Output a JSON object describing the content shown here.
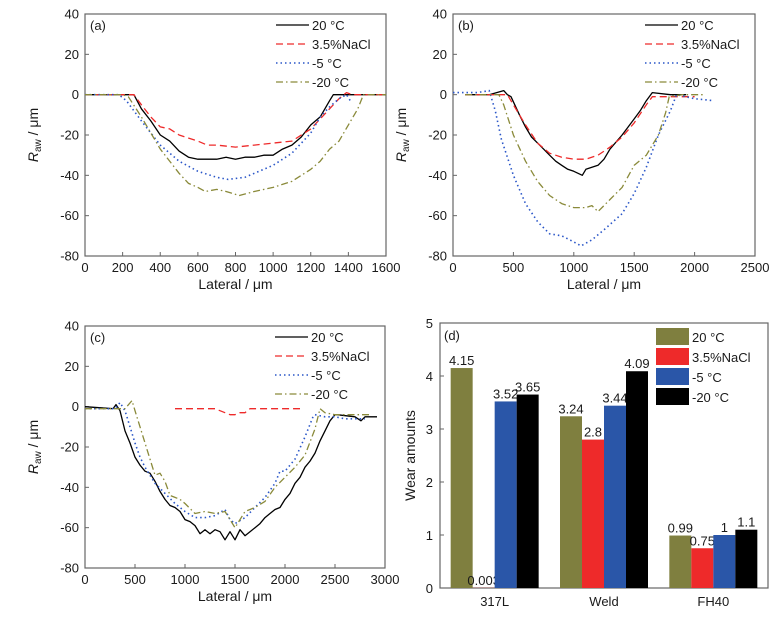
{
  "chart_data": [
    {
      "type": "line",
      "panel_label": "(a)",
      "xlabel": "Lateral / μm",
      "ylabel_main": "R",
      "ylabel_sub": "aw",
      "ylabel_unit": " / μm",
      "xlim": [
        0,
        1600
      ],
      "ylim": [
        -80,
        40
      ],
      "xticks": [
        0,
        200,
        400,
        600,
        800,
        1000,
        1200,
        1400,
        1600
      ],
      "yticks": [
        -80,
        -60,
        -40,
        -20,
        0,
        20,
        40
      ],
      "legend_position": "top-right",
      "series": [
        {
          "name": "20 °C",
          "color": "#000000",
          "style": "solid",
          "x": [
            0,
            200,
            260,
            300,
            350,
            400,
            450,
            500,
            550,
            600,
            650,
            700,
            750,
            800,
            850,
            900,
            950,
            1000,
            1050,
            1100,
            1150,
            1200,
            1250,
            1300,
            1320,
            1400,
            1600
          ],
          "y": [
            0,
            0,
            0,
            -7,
            -13,
            -20,
            -23,
            -28,
            -31,
            -32,
            -32,
            -32,
            -31,
            -32,
            -31,
            -31,
            -30,
            -30,
            -27,
            -25,
            -21,
            -15,
            -11,
            -3,
            0,
            0,
            0
          ]
        },
        {
          "name": "3.5%NaCl",
          "color": "#ee2a2a",
          "style": "dashed",
          "x": [
            0,
            200,
            260,
            300,
            350,
            400,
            450,
            500,
            600,
            650,
            700,
            800,
            900,
            1000,
            1100,
            1200,
            1250,
            1300,
            1350,
            1390,
            1420,
            1600
          ],
          "y": [
            0,
            0,
            0,
            -5,
            -11,
            -16,
            -17,
            -20,
            -23,
            -25,
            -25,
            -26,
            -25,
            -24,
            -23,
            -17,
            -12,
            -7,
            -2,
            1,
            0,
            0
          ]
        },
        {
          "name": "-5 °C",
          "color": "#2a56c8",
          "style": "dotted",
          "x": [
            0,
            180,
            220,
            300,
            400,
            500,
            600,
            700,
            760,
            850,
            900,
            1000,
            1100,
            1200,
            1250,
            1300,
            1350,
            1390,
            1410
          ],
          "y": [
            0,
            0,
            -3,
            -13,
            -25,
            -33,
            -38,
            -41,
            -42,
            -41,
            -39,
            -35,
            -29,
            -19,
            -11,
            -6,
            -2,
            0,
            -3
          ]
        },
        {
          "name": "-20 °C",
          "color": "#8a8a3a",
          "style": "dashdot",
          "x": [
            0,
            200,
            230,
            300,
            400,
            500,
            550,
            600,
            640,
            700,
            750,
            820,
            900,
            1000,
            1100,
            1200,
            1250,
            1300,
            1350,
            1400,
            1450,
            1480,
            1600
          ],
          "y": [
            0,
            0,
            -1,
            -11,
            -27,
            -39,
            -44,
            -46,
            -48,
            -47,
            -48,
            -50,
            -48,
            -46,
            -43,
            -37,
            -33,
            -27,
            -23,
            -15,
            -7,
            0,
            0
          ]
        }
      ]
    },
    {
      "type": "line",
      "panel_label": "(b)",
      "xlabel": "Lateral / μm",
      "ylabel_main": "R",
      "ylabel_sub": "aw",
      "ylabel_unit": " / μm",
      "xlim": [
        0,
        2500
      ],
      "ylim": [
        -80,
        40
      ],
      "xticks": [
        0,
        500,
        1000,
        1500,
        2000,
        2500
      ],
      "yticks": [
        -80,
        -60,
        -40,
        -20,
        0,
        20,
        40
      ],
      "legend_position": "top-right",
      "series": [
        {
          "name": "20 °C",
          "color": "#000000",
          "style": "solid",
          "x": [
            100,
            300,
            420,
            450,
            480,
            550,
            600,
            650,
            700,
            750,
            800,
            850,
            900,
            950,
            1000,
            1070,
            1100,
            1150,
            1200,
            1250,
            1300,
            1400,
            1450,
            1500,
            1550,
            1600,
            1650,
            1800,
            1930
          ],
          "y": [
            0,
            0,
            2,
            0,
            -1,
            -10,
            -16,
            -21,
            -24,
            -27,
            -30,
            -33,
            -35,
            -37,
            -38,
            -40,
            -37,
            -36,
            -35,
            -32,
            -27,
            -20,
            -16,
            -12,
            -8,
            -3,
            1,
            0,
            0
          ]
        },
        {
          "name": "3.5%NaCl",
          "color": "#ee2a2a",
          "style": "dashed",
          "x": [
            100,
            400,
            450,
            500,
            600,
            700,
            800,
            900,
            1000,
            1100,
            1200,
            1300,
            1400,
            1500,
            1600,
            1650,
            1800,
            2000
          ],
          "y": [
            0,
            0,
            0,
            -5,
            -15,
            -24,
            -29,
            -31,
            -32,
            -32,
            -30,
            -26,
            -21,
            -14,
            -5,
            -1,
            -1,
            -1
          ]
        },
        {
          "name": "-5 °C",
          "color": "#2a56c8",
          "style": "dotted",
          "x": [
            0,
            200,
            300,
            350,
            400,
            500,
            600,
            700,
            800,
            900,
            1000,
            1060,
            1150,
            1250,
            1400,
            1500,
            1600,
            1700,
            1800,
            1850,
            2000,
            2160
          ],
          "y": [
            1,
            1,
            2,
            -8,
            -22,
            -40,
            -54,
            -63,
            -69,
            -70,
            -73,
            -75,
            -72,
            -67,
            -59,
            -49,
            -36,
            -20,
            -8,
            0,
            -2,
            -3
          ]
        },
        {
          "name": "-20 °C",
          "color": "#8a8a3a",
          "style": "dashdot",
          "x": [
            100,
            300,
            380,
            420,
            500,
            600,
            700,
            800,
            900,
            1000,
            1100,
            1150,
            1200,
            1300,
            1400,
            1500,
            1600,
            1700,
            1760,
            1790,
            1900,
            2070
          ],
          "y": [
            0,
            0,
            0,
            -5,
            -20,
            -33,
            -43,
            -50,
            -54,
            -56,
            -56,
            -55,
            -58,
            -52,
            -46,
            -35,
            -30,
            -20,
            -9,
            -1,
            0,
            0
          ]
        }
      ]
    },
    {
      "type": "line",
      "panel_label": "(c)",
      "xlabel": "Lateral / μm",
      "ylabel_main": "R",
      "ylabel_sub": "aw",
      "ylabel_unit": " / μm",
      "xlim": [
        0,
        3000
      ],
      "ylim": [
        -80,
        40
      ],
      "xticks": [
        0,
        500,
        1000,
        1500,
        2000,
        2500,
        3000
      ],
      "yticks": [
        -80,
        -60,
        -40,
        -20,
        0,
        20,
        40
      ],
      "legend_position": "top-right",
      "series": [
        {
          "name": "20 °C",
          "color": "#000000",
          "style": "solid",
          "x": [
            0,
            280,
            310,
            350,
            400,
            450,
            500,
            550,
            600,
            650,
            700,
            750,
            800,
            850,
            900,
            950,
            1000,
            1050,
            1100,
            1150,
            1200,
            1250,
            1300,
            1350,
            1400,
            1450,
            1500,
            1550,
            1600,
            1650,
            1700,
            1750,
            1800,
            1850,
            1900,
            1950,
            2000,
            2050,
            2100,
            2150,
            2200,
            2250,
            2300,
            2350,
            2400,
            2450,
            2500,
            2520,
            2700,
            2760,
            2800,
            2920
          ],
          "y": [
            0,
            -1,
            1,
            -2,
            -12,
            -18,
            -25,
            -29,
            -32,
            -33,
            -37,
            -42,
            -46,
            -49,
            -50,
            -52,
            -56,
            -57,
            -59,
            -63,
            -61,
            -63,
            -61,
            -62,
            -66,
            -62,
            -66,
            -61,
            -64,
            -62,
            -60,
            -58,
            -55,
            -53,
            -51,
            -50,
            -46,
            -43,
            -38,
            -35,
            -30,
            -27,
            -23,
            -17,
            -12,
            -7,
            -4,
            -4,
            -5,
            -7,
            -5,
            -5
          ]
        },
        {
          "name": "3.5%NaCl",
          "color": "#ee2a2a",
          "style": "dashed",
          "x": [
            900,
            1000,
            1100,
            1200,
            1300,
            1400,
            1450,
            1500,
            1550,
            1600,
            1650,
            1700,
            1800,
            1900,
            2000,
            2150
          ],
          "y": [
            -1,
            -1,
            -1,
            -1,
            -1,
            -3,
            -4,
            -4,
            -3,
            -3,
            -1,
            -1,
            -1,
            -1,
            -1,
            -1
          ]
        },
        {
          "name": "-5 °C",
          "color": "#2a56c8",
          "style": "dotted",
          "x": [
            0,
            300,
            350,
            400,
            450,
            500,
            550,
            600,
            700,
            800,
            900,
            1000,
            1100,
            1200,
            1300,
            1400,
            1450,
            1500,
            1600,
            1700,
            1800,
            1900,
            1950,
            2000,
            2100,
            2200,
            2280,
            2300,
            2400,
            2500,
            2600,
            2800
          ],
          "y": [
            -1,
            -1,
            2,
            -2,
            -10,
            -18,
            -25,
            -30,
            -38,
            -43,
            -48,
            -52,
            -55,
            -55,
            -54,
            -51,
            -56,
            -58,
            -55,
            -50,
            -45,
            -38,
            -32,
            -32,
            -26,
            -15,
            -5,
            -4,
            -5,
            -5,
            -6,
            -6
          ]
        },
        {
          "name": "-20 °C",
          "color": "#8a8a3a",
          "style": "dashdot",
          "x": [
            0,
            400,
            470,
            500,
            550,
            600,
            650,
            700,
            750,
            800,
            850,
            900,
            950,
            1000,
            1100,
            1200,
            1300,
            1400,
            1450,
            1500,
            1550,
            1600,
            1700,
            1800,
            1900,
            2000,
            2100,
            2200,
            2300,
            2350,
            2400,
            2500,
            2700,
            2850
          ],
          "y": [
            -1,
            -1,
            3,
            -2,
            -10,
            -18,
            -26,
            -34,
            -33,
            -37,
            -44,
            -45,
            -46,
            -48,
            -53,
            -52,
            -53,
            -52,
            -56,
            -60,
            -56,
            -52,
            -50,
            -47,
            -40,
            -35,
            -30,
            -24,
            -11,
            -1,
            -3,
            -4,
            -4,
            -4
          ]
        }
      ]
    },
    {
      "type": "bar",
      "panel_label": "(d)",
      "xlabel": "",
      "ylabel": "Wear amounts",
      "ylim": [
        0,
        5
      ],
      "yticks": [
        0,
        1,
        2,
        3,
        4,
        5
      ],
      "categories": [
        "317L",
        "Weld",
        "FH40"
      ],
      "legend_position": "top-right",
      "series": [
        {
          "name": "20 °C",
          "color": "#7f7f3f",
          "values": [
            4.15,
            3.24,
            0.99
          ],
          "labels": [
            "4.15",
            "3.24",
            "0.99"
          ]
        },
        {
          "name": "3.5%NaCl",
          "color": "#ee2a2a",
          "values": [
            0.003,
            2.8,
            0.75
          ],
          "labels": [
            "0.003",
            "2.8",
            "0.75"
          ]
        },
        {
          "name": "-5 °C",
          "color": "#2a56a8",
          "values": [
            3.52,
            3.44,
            1.0
          ],
          "labels": [
            "3.52",
            "3.44",
            "1"
          ]
        },
        {
          "name": "-20 °C",
          "color": "#000000",
          "values": [
            3.65,
            4.09,
            1.1
          ],
          "labels": [
            "3.65",
            "4.09",
            "1.1"
          ]
        }
      ]
    }
  ]
}
